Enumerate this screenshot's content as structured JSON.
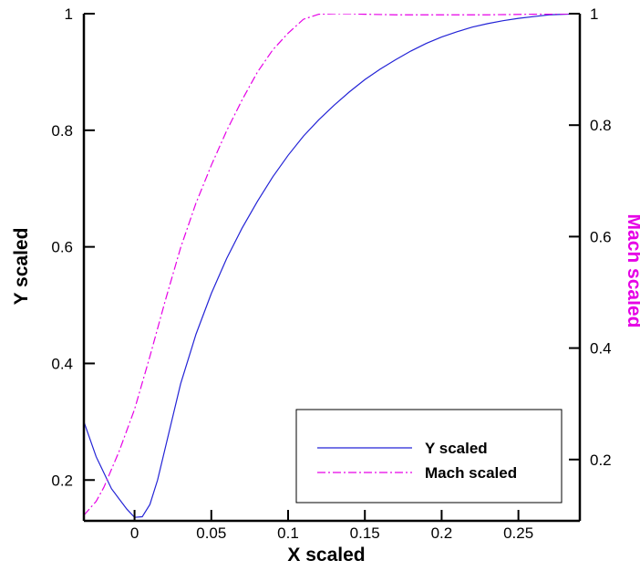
{
  "chart_data": {
    "type": "line",
    "title": "",
    "xlabel": "X scaled",
    "ylabel": "Y scaled",
    "ylabel_right": "Mach scaled",
    "xlim": [
      -0.033,
      0.29
    ],
    "ylim": [
      0.13,
      1.0
    ],
    "ylim_right": [
      0.09,
      1.0
    ],
    "x_ticks": [
      0,
      0.05,
      0.1,
      0.15,
      0.2,
      0.25
    ],
    "x_tick_labels": [
      "0",
      "0.05",
      "0.1",
      "0.15",
      "0.2",
      "0.25"
    ],
    "y_ticks": [
      0.2,
      0.4,
      0.6,
      0.8,
      1.0
    ],
    "y_tick_labels": [
      "0.2",
      "0.4",
      "0.6",
      "0.8",
      "1"
    ],
    "y_right_ticks": [
      0.2,
      0.4,
      0.6,
      0.8,
      1.0
    ],
    "y_right_tick_labels": [
      "0.2",
      "0.4",
      "0.6",
      "0.8",
      "1"
    ],
    "grid": false,
    "legend_position": "bottom-right",
    "series": [
      {
        "name": "Y scaled",
        "axis": "left",
        "color": "#2323d6",
        "style": "solid",
        "x": [
          -0.033,
          -0.025,
          -0.015,
          -0.005,
          0.0,
          0.005,
          0.01,
          0.015,
          0.02,
          0.025,
          0.03,
          0.04,
          0.05,
          0.06,
          0.07,
          0.08,
          0.09,
          0.1,
          0.11,
          0.12,
          0.13,
          0.14,
          0.15,
          0.16,
          0.17,
          0.18,
          0.19,
          0.2,
          0.21,
          0.22,
          0.23,
          0.24,
          0.25,
          0.26,
          0.27,
          0.28,
          0.29
        ],
        "values": [
          0.3,
          0.24,
          0.185,
          0.15,
          0.136,
          0.137,
          0.158,
          0.2,
          0.255,
          0.31,
          0.365,
          0.45,
          0.52,
          0.58,
          0.632,
          0.678,
          0.72,
          0.757,
          0.79,
          0.818,
          0.843,
          0.866,
          0.887,
          0.905,
          0.921,
          0.936,
          0.949,
          0.96,
          0.969,
          0.977,
          0.983,
          0.988,
          0.992,
          0.995,
          0.998,
          0.999,
          1.0
        ]
      },
      {
        "name": "Mach scaled",
        "axis": "right",
        "color": "#e600e6",
        "style": "dash-dot",
        "x": [
          -0.033,
          -0.025,
          -0.02,
          -0.01,
          0.0,
          0.01,
          0.02,
          0.03,
          0.04,
          0.05,
          0.06,
          0.07,
          0.08,
          0.09,
          0.1,
          0.11,
          0.12,
          0.13,
          0.14,
          0.15,
          0.17,
          0.2,
          0.23,
          0.26,
          0.29
        ],
        "values": [
          0.1,
          0.125,
          0.15,
          0.215,
          0.29,
          0.385,
          0.485,
          0.58,
          0.66,
          0.728,
          0.79,
          0.845,
          0.895,
          0.935,
          0.965,
          0.99,
          0.999,
          1.0,
          1.0,
          0.999,
          0.998,
          0.998,
          0.998,
          0.999,
          1.0
        ]
      }
    ]
  }
}
